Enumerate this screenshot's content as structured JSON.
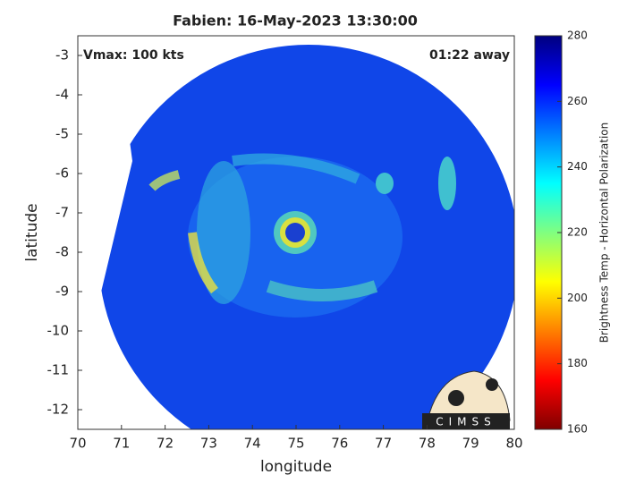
{
  "chart_data": {
    "type": "swath-map",
    "title": "Fabien: 16-May-2023 13:30:00",
    "xlabel": "longitude",
    "ylabel": "latitude",
    "annotations": [
      "Vmax: 100 kts",
      "01:22 away"
    ],
    "logo": "CIMSS",
    "xlim": [
      70,
      80
    ],
    "xticks": [
      70,
      71,
      72,
      73,
      74,
      75,
      76,
      77,
      78,
      79,
      80
    ],
    "ylim": [
      -12.5,
      -2.5
    ],
    "yticks": [
      -12,
      -11,
      -10,
      -9,
      -8,
      -7,
      -6,
      -5,
      -4,
      -3
    ],
    "colorbar": {
      "label": "Brightness Temp - Horizontal Polarization",
      "clim": [
        160,
        280
      ],
      "ticks": [
        160,
        180,
        200,
        220,
        240,
        260,
        280
      ],
      "colormap": [
        "#7f0000",
        "#ff0000",
        "#ff8000",
        "#ffff00",
        "#80ff80",
        "#00ffff",
        "#0080ff",
        "#0000ff",
        "#00007f"
      ]
    }
  }
}
